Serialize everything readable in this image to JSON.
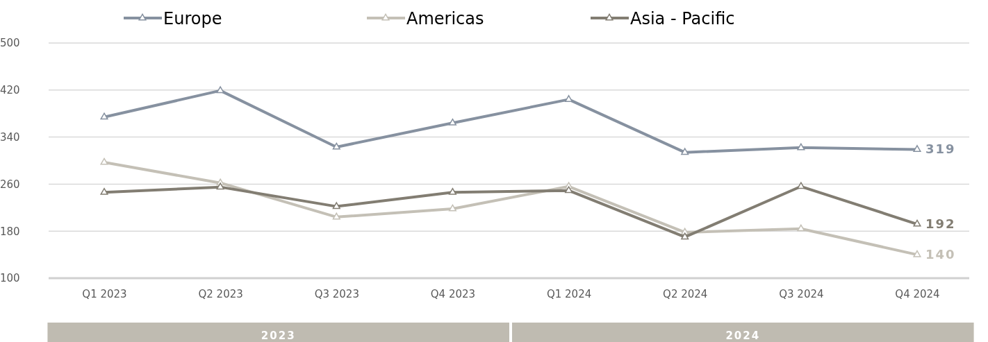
{
  "chart_data": {
    "type": "line",
    "categories": [
      "Q1 2023",
      "Q2 2023",
      "Q3 2023",
      "Q4 2023",
      "Q1 2024",
      "Q2 2024",
      "Q3 2024",
      "Q4 2024"
    ],
    "series": [
      {
        "name": "Europe",
        "color": "#8691a0",
        "values": [
          374,
          419,
          323,
          364,
          404,
          314,
          322,
          319
        ],
        "value_labels": [
          null,
          null,
          null,
          null,
          null,
          null,
          null,
          "319"
        ]
      },
      {
        "name": "Americas",
        "color": "#c4c0b6",
        "values": [
          297,
          262,
          204,
          218,
          256,
          178,
          184,
          140
        ],
        "value_labels": [
          null,
          null,
          null,
          null,
          null,
          null,
          null,
          "140"
        ]
      },
      {
        "name": "Asia - Pacific",
        "color": "#827d72",
        "values": [
          246,
          255,
          222,
          246,
          249,
          170,
          256,
          192
        ],
        "value_labels": [
          null,
          null,
          null,
          null,
          null,
          null,
          null,
          "192"
        ]
      }
    ],
    "ylim": [
      100,
      500
    ],
    "yticks": [
      100,
      180,
      260,
      340,
      420,
      500
    ],
    "grid": "y",
    "legend": "top",
    "marker": "triangle",
    "line_style": "solid",
    "annotations": [
      "2023",
      "2024"
    ]
  }
}
